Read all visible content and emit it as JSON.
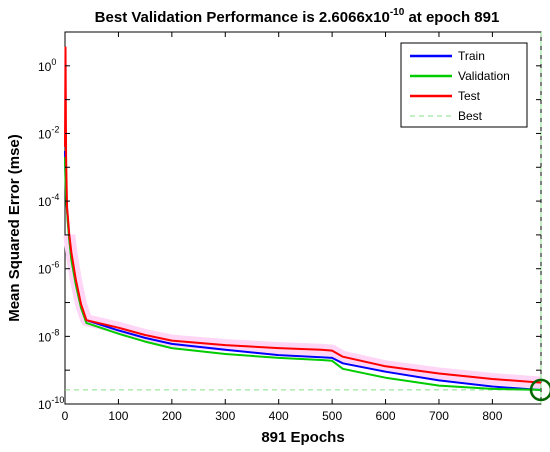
{
  "chart_data": {
    "type": "line",
    "title_main": "Best Validation Performance is 2.6066x10",
    "title_exp": "-10",
    "title_tail": " at epoch 891",
    "xlabel": "891 Epochs",
    "ylabel": "Mean Squared Error  (mse)",
    "xlim": [
      0,
      891
    ],
    "ylim": [
      1e-10,
      10
    ],
    "yscale": "log",
    "grid": false,
    "legend_position": "top-right",
    "x_ticks": [
      "0",
      "100",
      "200",
      "300",
      "400",
      "500",
      "600",
      "700",
      "800"
    ],
    "y_ticks": [
      {
        "base": "10",
        "exp": "-10"
      },
      {
        "base": "10",
        "exp": "-8"
      },
      {
        "base": "10",
        "exp": "-6"
      },
      {
        "base": "10",
        "exp": "-4"
      },
      {
        "base": "10",
        "exp": "-2"
      },
      {
        "base": "10",
        "exp": "0"
      }
    ],
    "series": [
      {
        "name": "Train",
        "color": "#0000ff",
        "x": [
          0,
          1,
          2,
          3,
          4,
          5,
          8,
          12,
          20,
          30,
          40,
          100,
          150,
          200,
          300,
          400,
          480,
          500,
          520,
          600,
          700,
          800,
          891
        ],
        "y": [
          0.003,
          0.0005,
          0.0002,
          0.0001,
          6e-05,
          3e-05,
          8e-06,
          2e-06,
          4e-07,
          8e-08,
          3e-08,
          1.5e-08,
          9e-09,
          6e-09,
          4e-09,
          2.8e-09,
          2.4e-09,
          2.3e-09,
          1.6e-09,
          9e-10,
          5e-10,
          3.3e-10,
          2.6e-10
        ]
      },
      {
        "name": "Validation",
        "color": "#00cc00",
        "x": [
          0,
          1,
          2,
          3,
          4,
          5,
          8,
          12,
          20,
          30,
          40,
          100,
          150,
          200,
          300,
          400,
          480,
          500,
          520,
          600,
          700,
          800,
          891
        ],
        "y": [
          0.002,
          0.0004,
          0.00015,
          8e-05,
          5e-05,
          2.5e-05,
          7e-06,
          1.8e-06,
          3.5e-07,
          7e-08,
          2.5e-08,
          1.2e-08,
          7e-09,
          4.5e-09,
          3e-09,
          2.3e-09,
          2e-09,
          1.9e-09,
          1.1e-09,
          6e-10,
          3.5e-10,
          2.8e-10,
          2.6066e-10
        ]
      },
      {
        "name": "Test",
        "color": "#ff0000",
        "x": [
          0,
          1,
          2,
          3,
          4,
          5,
          8,
          12,
          20,
          30,
          40,
          100,
          150,
          200,
          300,
          400,
          480,
          500,
          520,
          600,
          700,
          800,
          891
        ],
        "y": [
          0.004,
          3.5,
          0.002,
          0.0003,
          6e-05,
          4e-05,
          1e-05,
          3e-06,
          5e-07,
          9e-08,
          3e-08,
          1.8e-08,
          1.1e-08,
          7.5e-09,
          5.5e-09,
          4.5e-09,
          4e-09,
          3.8e-09,
          2.5e-09,
          1.3e-09,
          8e-10,
          5.5e-10,
          4.3e-10
        ]
      }
    ],
    "best": {
      "name": "Best",
      "color": "#88dd88",
      "epoch": 891,
      "value": 2.6066e-10,
      "marker_color": "#006600"
    }
  }
}
